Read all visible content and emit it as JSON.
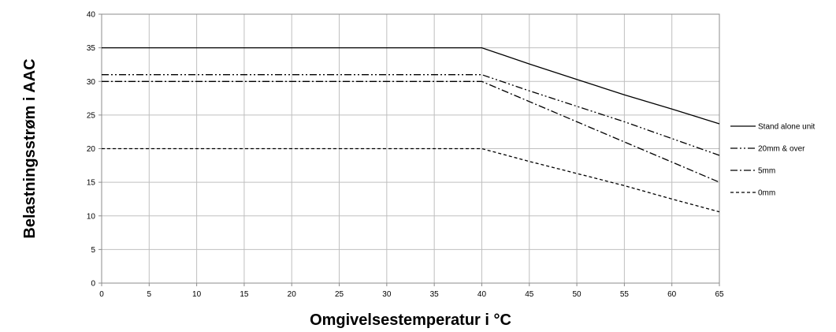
{
  "chart_data": {
    "type": "line",
    "title": "",
    "xlabel": "Omgivelsestemperatur i °C",
    "ylabel": "Belastningsstrøm i AAC",
    "xlim": [
      0,
      65
    ],
    "ylim": [
      0,
      40
    ],
    "x_ticks": [
      0,
      5,
      10,
      15,
      20,
      25,
      30,
      35,
      40,
      45,
      50,
      55,
      60,
      65
    ],
    "y_ticks": [
      0,
      5,
      10,
      15,
      20,
      25,
      30,
      35,
      40
    ],
    "grid": true,
    "legend_position": "right",
    "series": [
      {
        "name": "Stand alone unit",
        "dash": "solid",
        "x": [
          0,
          40,
          45,
          50,
          55,
          60,
          65
        ],
        "y": [
          35,
          35,
          32.6,
          30.3,
          28.0,
          25.9,
          23.7
        ]
      },
      {
        "name": "20mm & over",
        "dash": "dash-dot-dot",
        "x": [
          0,
          40,
          45,
          50,
          55,
          60,
          65
        ],
        "y": [
          31,
          31,
          28.6,
          26.3,
          24.0,
          21.5,
          19.0
        ]
      },
      {
        "name": "5mm",
        "dash": "dash-dot",
        "x": [
          0,
          40,
          45,
          50,
          55,
          60,
          65
        ],
        "y": [
          30,
          30,
          27.0,
          24.0,
          21.0,
          18.0,
          15.0
        ]
      },
      {
        "name": "0mm",
        "dash": "dashed",
        "x": [
          0,
          40,
          45,
          50,
          55,
          60,
          65
        ],
        "y": [
          20,
          20,
          18.1,
          16.3,
          14.5,
          12.5,
          10.6
        ]
      }
    ]
  }
}
